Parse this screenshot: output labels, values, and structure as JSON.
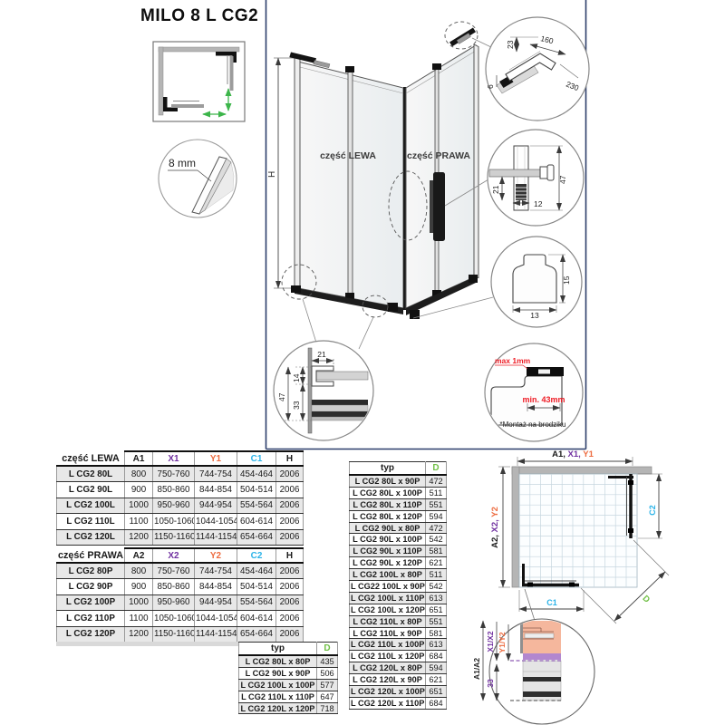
{
  "title": "MILO 8 L CG2",
  "glass_note": "8 mm",
  "colors": {
    "ink": "#1a1a1a",
    "purple": "#7030a0",
    "orange": "#ed6b3f",
    "cyan": "#2bb3e8",
    "green": "#70bf45",
    "arrow_green": "#3cb54a",
    "red": "#ee1c25",
    "navy": "#2c3e6b",
    "stripe": "#e8e8e8",
    "wall": "#b5b5b5",
    "salmon": "#f5b79d",
    "violet": "#b287cf"
  },
  "iso": {
    "left_label": "część LEWA",
    "right_label": "część PRAWA",
    "h_label": "H"
  },
  "details": {
    "bracket": {
      "d23": "23",
      "d160": "160",
      "d6": "6",
      "d230": "230"
    },
    "knob": {
      "d21": "21",
      "d12": "12",
      "d47": "47"
    },
    "glide": {
      "d15": "15",
      "d13": "13"
    },
    "rail": {
      "d21": "21",
      "d14": "14",
      "d33": "33",
      "d47": "47"
    },
    "tray": {
      "max": "max 1mm",
      "min": "min. 43mm",
      "note": "*Montaż na brodziku"
    }
  },
  "plan": {
    "top_label_parts": [
      {
        "text": "A1, ",
        "color": "ink"
      },
      {
        "text": "X1, ",
        "color": "purple"
      },
      {
        "text": "Y1",
        "color": "orange"
      }
    ],
    "left_label_parts": [
      {
        "text": "A2, ",
        "color": "ink"
      },
      {
        "text": "X2, ",
        "color": "purple"
      },
      {
        "text": "Y2",
        "color": "orange"
      }
    ],
    "c1": "C1",
    "c2": "C2",
    "d": "D",
    "detail": {
      "a": "A1/A2",
      "x": "X1/X2",
      "y": "Y1/Y2",
      "n33": "33"
    }
  },
  "tables": {
    "lewa": {
      "title": "część LEWA",
      "headers": [
        {
          "label": "A1",
          "color": "ink"
        },
        {
          "label": "X1",
          "color": "purple"
        },
        {
          "label": "Y1",
          "color": "orange"
        },
        {
          "label": "C1",
          "color": "cyan"
        },
        {
          "label": "H",
          "color": "ink"
        }
      ],
      "rows": [
        [
          "L CG2 80L",
          "800",
          "750-760",
          "744-754",
          "454-464",
          "2006"
        ],
        [
          "L CG2 90L",
          "900",
          "850-860",
          "844-854",
          "504-514",
          "2006"
        ],
        [
          "L CG2 100L",
          "1000",
          "950-960",
          "944-954",
          "554-564",
          "2006"
        ],
        [
          "L CG2 110L",
          "1100",
          "1050-1060",
          "1044-1054",
          "604-614",
          "2006"
        ],
        [
          "L CG2 120L",
          "1200",
          "1150-1160",
          "1144-1154",
          "654-664",
          "2006"
        ]
      ]
    },
    "prawa": {
      "title": "część PRAWA",
      "headers": [
        {
          "label": "A2",
          "color": "ink"
        },
        {
          "label": "X2",
          "color": "purple"
        },
        {
          "label": "Y2",
          "color": "orange"
        },
        {
          "label": "C2",
          "color": "cyan"
        },
        {
          "label": "H",
          "color": "ink"
        }
      ],
      "rows": [
        [
          "L CG2 80P",
          "800",
          "750-760",
          "744-754",
          "454-464",
          "2006"
        ],
        [
          "L CG2 90P",
          "900",
          "850-860",
          "844-854",
          "504-514",
          "2006"
        ],
        [
          "L CG2 100P",
          "1000",
          "950-960",
          "944-954",
          "554-564",
          "2006"
        ],
        [
          "L CG2 110P",
          "1100",
          "1050-1060",
          "1044-1054",
          "604-614",
          "2006"
        ],
        [
          "L CG2 120P",
          "1200",
          "1150-1160",
          "1144-1154",
          "654-664",
          "2006"
        ]
      ]
    },
    "combo": {
      "headers": [
        {
          "label": "typ",
          "color": "ink"
        },
        {
          "label": "D",
          "color": "green"
        }
      ],
      "rows": [
        [
          "L CG2 80L x 90P",
          "472"
        ],
        [
          "L CG2 80L x 100P",
          "511"
        ],
        [
          "L CG2 80L x 110P",
          "551"
        ],
        [
          "L CG2 80L x 120P",
          "594"
        ],
        [
          "L CG2 90L x 80P",
          "472"
        ],
        [
          "L CG2 90L x 100P",
          "542"
        ],
        [
          "L CG2 90L x 110P",
          "581"
        ],
        [
          "L CG2 90L x 120P",
          "621"
        ],
        [
          "L CG2 100L x 80P",
          "511"
        ],
        [
          "L CG22 100L x 90P",
          "542"
        ],
        [
          "L CG2 100L x 110P",
          "613"
        ],
        [
          "L CG2 100L x 120P",
          "651"
        ],
        [
          "L CG2 110L x 80P",
          "551"
        ],
        [
          "L CG2 110L x 90P",
          "581"
        ],
        [
          "L CG2 110L x 100P",
          "613"
        ],
        [
          "L CG2 110L x 120P",
          "684"
        ],
        [
          "L CG2 120L x 80P",
          "594"
        ],
        [
          "L CG2 120L x 90P",
          "621"
        ],
        [
          "L CG2 120L x 100P",
          "651"
        ],
        [
          "L CG2 120L x 110P",
          "684"
        ]
      ]
    },
    "square": {
      "headers": [
        {
          "label": "typ",
          "color": "ink"
        },
        {
          "label": "D",
          "color": "green"
        }
      ],
      "rows": [
        [
          "L CG2 80L x 80P",
          "435"
        ],
        [
          "L CG2 90L x 90P",
          "506"
        ],
        [
          "L CG2 100L x 100P",
          "577"
        ],
        [
          "L CG2 110L x 110P",
          "647"
        ],
        [
          "L CG2 120L x 120P",
          "718"
        ]
      ]
    }
  }
}
